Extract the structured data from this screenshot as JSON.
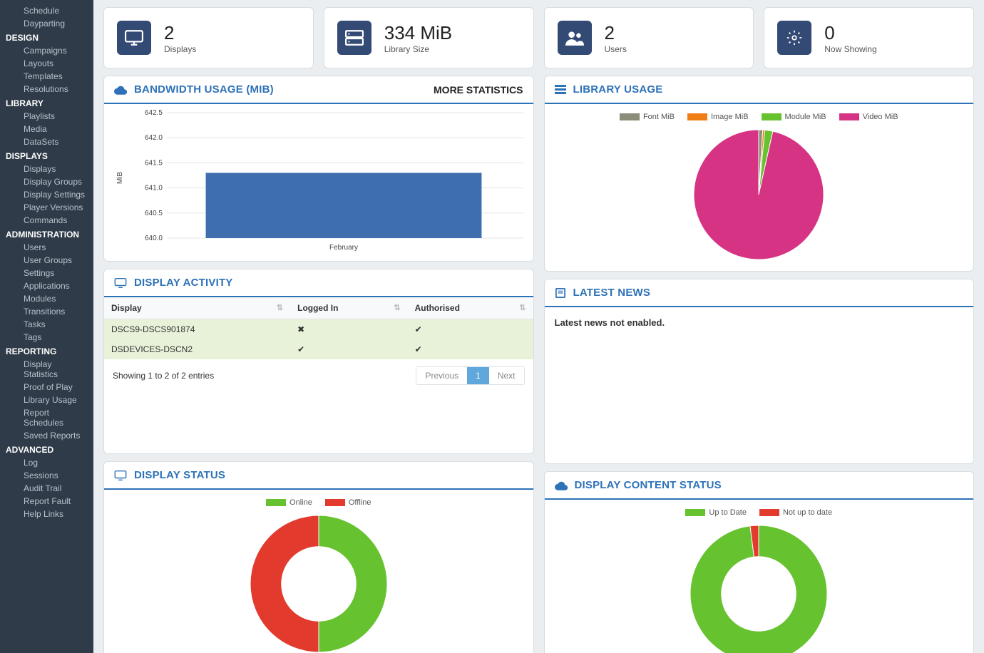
{
  "sidebar": {
    "top_items": [
      "Schedule",
      "Dayparting"
    ],
    "groups": [
      {
        "label": "DESIGN",
        "items": [
          "Campaigns",
          "Layouts",
          "Templates",
          "Resolutions"
        ]
      },
      {
        "label": "LIBRARY",
        "items": [
          "Playlists",
          "Media",
          "DataSets"
        ]
      },
      {
        "label": "DISPLAYS",
        "items": [
          "Displays",
          "Display Groups",
          "Display Settings",
          "Player Versions",
          "Commands"
        ]
      },
      {
        "label": "ADMINISTRATION",
        "items": [
          "Users",
          "User Groups",
          "Settings",
          "Applications",
          "Modules",
          "Transitions",
          "Tasks",
          "Tags"
        ]
      },
      {
        "label": "REPORTING",
        "items": [
          "Display Statistics",
          "Proof of Play",
          "Library Usage",
          "Report Schedules",
          "Saved Reports"
        ]
      },
      {
        "label": "ADVANCED",
        "items": [
          "Log",
          "Sessions",
          "Audit Trail",
          "Report Fault",
          "Help Links"
        ]
      }
    ],
    "colors": {
      "bg": "#2f3b48",
      "item": "#b8c1cb",
      "header": "#ffffff"
    }
  },
  "stats": [
    {
      "value": "2",
      "label": "Displays",
      "icon": "monitor"
    },
    {
      "value": "334 MiB",
      "label": "Library Size",
      "icon": "server"
    },
    {
      "value": "2",
      "label": "Users",
      "icon": "users"
    },
    {
      "value": "0",
      "label": "Now Showing",
      "icon": "gear"
    }
  ],
  "bandwidth": {
    "title": "BANDWIDTH USAGE (MIB)",
    "more": "MORE STATISTICS",
    "type": "bar",
    "ylabel": "MiB",
    "x_categories": [
      "February"
    ],
    "values": [
      641.3
    ],
    "ylim": [
      640.0,
      642.5
    ],
    "ytick_step": 0.5,
    "bar_color": "#3f6eaf",
    "grid_color": "#e5e5e5",
    "label_fontsize": 10
  },
  "library_usage": {
    "title": "LIBRARY USAGE",
    "type": "pie",
    "series": [
      {
        "label": "Font MiB",
        "value": 1,
        "color": "#8c8c78"
      },
      {
        "label": "Image MiB",
        "value": 0.5,
        "color": "#f07e16"
      },
      {
        "label": "Module MiB",
        "value": 2,
        "color": "#66c22e"
      },
      {
        "label": "Video MiB",
        "value": 96.5,
        "color": "#d63384"
      }
    ],
    "background_color": "#ffffff"
  },
  "display_activity": {
    "title": "DISPLAY ACTIVITY",
    "columns": [
      "Display",
      "Logged In",
      "Authorised"
    ],
    "rows": [
      {
        "display": "DSCS9-DSCS901874",
        "logged_in": false,
        "authorised": true
      },
      {
        "display": "DSDEVICES-DSCN2",
        "logged_in": true,
        "authorised": true
      }
    ],
    "info": "Showing 1 to 2 of 2 entries",
    "pager": {
      "prev": "Previous",
      "page": "1",
      "next": "Next"
    }
  },
  "latest_news": {
    "title": "LATEST NEWS",
    "body": "Latest news not enabled."
  },
  "display_status": {
    "title": "DISPLAY STATUS",
    "type": "donut",
    "series": [
      {
        "label": "Online",
        "value": 1,
        "color": "#66c22e"
      },
      {
        "label": "Offline",
        "value": 1,
        "color": "#e23b2e"
      }
    ],
    "inner_radius_pct": 55
  },
  "content_status": {
    "title": "DISPLAY CONTENT STATUS",
    "type": "donut",
    "series": [
      {
        "label": "Up to Date",
        "value": 98,
        "color": "#66c22e"
      },
      {
        "label": "Not up to date",
        "value": 2,
        "color": "#e23b2e"
      }
    ],
    "inner_radius_pct": 55
  },
  "accent_color": "#2d72b8",
  "icon_box_color": "#334a75"
}
